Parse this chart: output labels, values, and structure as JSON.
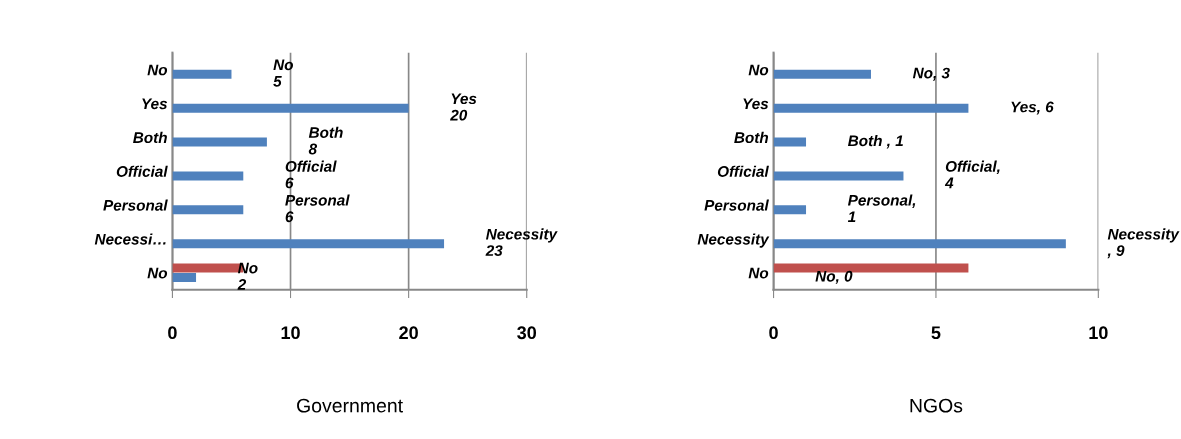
{
  "chart_data": [
    {
      "type": "bar",
      "orientation": "horizontal",
      "xlabel": "Government",
      "categories": [
        "No",
        "Yes",
        "Both",
        "Official",
        "Personal",
        "Necessi…",
        "No"
      ],
      "series": [
        {
          "color": "#4f81bd",
          "values": [
            5,
            20,
            8,
            6,
            6,
            23,
            2
          ],
          "value_labels": [
            "No\n5",
            "Yes\n20",
            "Both\n8",
            "Official\n6",
            "Personal\n6",
            "Necessity\n23",
            "No\n2"
          ]
        },
        {
          "color": "#c0504d",
          "values": [
            null,
            null,
            null,
            null,
            null,
            null,
            6
          ]
        }
      ],
      "xlim": [
        0,
        30
      ],
      "xticks": [
        0,
        10,
        20,
        30
      ],
      "grid": "x",
      "legend": false
    },
    {
      "type": "bar",
      "orientation": "horizontal",
      "xlabel": "NGOs",
      "categories": [
        "No",
        "Yes",
        "Both",
        "Official",
        "Personal",
        "Necessity",
        "No"
      ],
      "series": [
        {
          "color": "#4f81bd",
          "values": [
            3,
            6,
            1,
            4,
            1,
            9,
            0
          ],
          "value_labels": [
            "No, 3",
            "Yes, 6",
            "Both , 1",
            "Official,\n4",
            "Personal,\n1",
            "Necessity\n, 9",
            "No, 0"
          ]
        },
        {
          "color": "#c0504d",
          "values": [
            null,
            null,
            null,
            null,
            null,
            null,
            6
          ]
        }
      ],
      "xlim": [
        0,
        10
      ],
      "xticks": [
        0,
        5,
        10
      ],
      "grid": "x",
      "legend": false
    }
  ]
}
